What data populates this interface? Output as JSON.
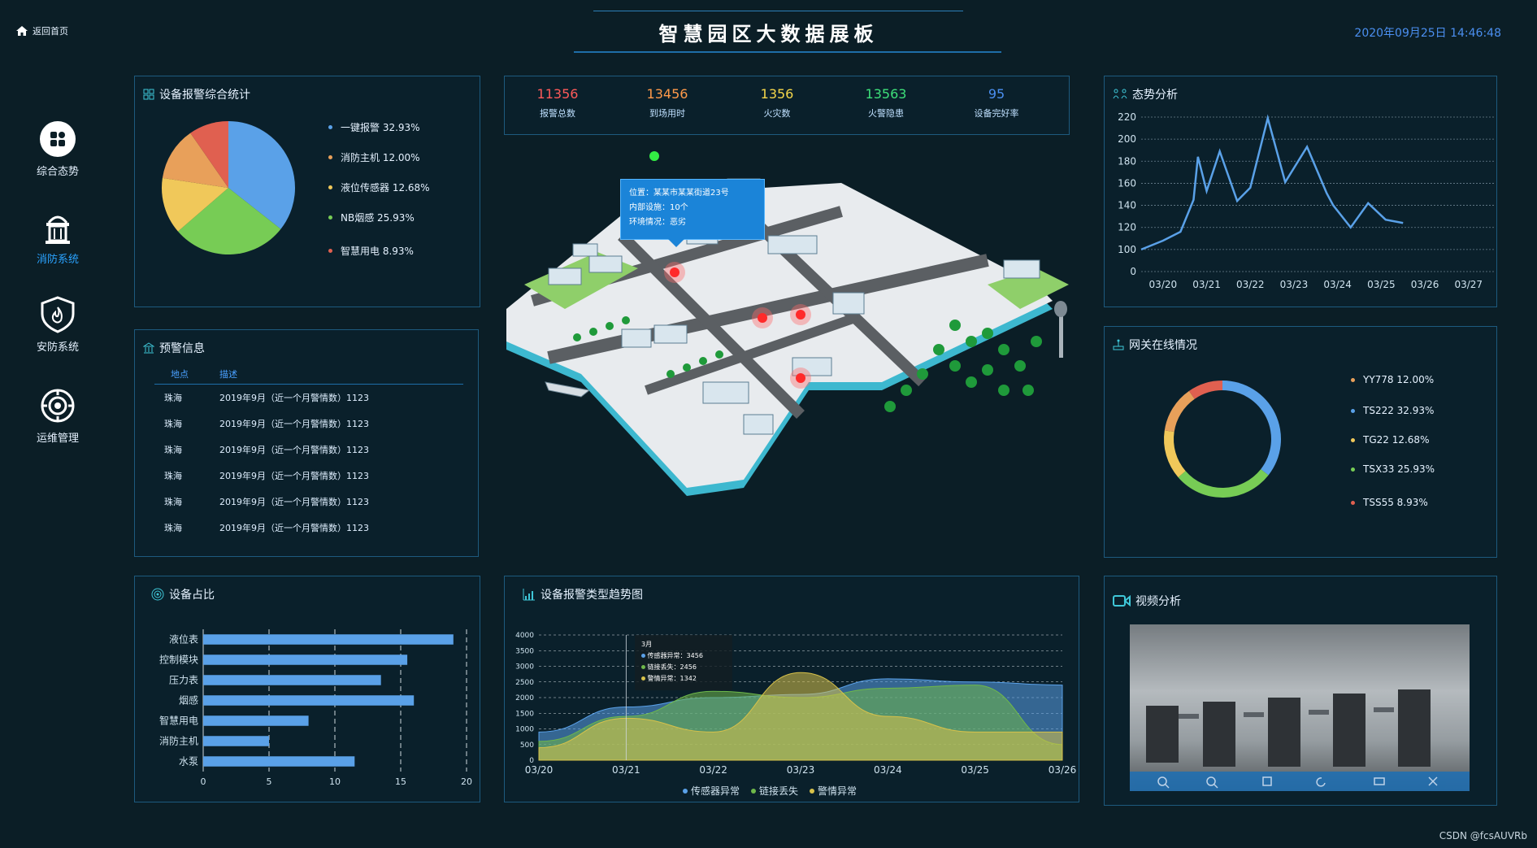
{
  "header": {
    "home_label": "返回首页",
    "title": "智慧园区大数据展板",
    "datetime": "2020年09月25日 14:46:48"
  },
  "nav": {
    "items": [
      {
        "label": "综合态势",
        "icon": "dashboard-icon"
      },
      {
        "label": "消防系统",
        "icon": "fire-hydrant-icon",
        "active": true
      },
      {
        "label": "安防系统",
        "icon": "shield-icon"
      },
      {
        "label": "运维管理",
        "icon": "gear-icon"
      }
    ]
  },
  "alarm_stats": {
    "title": "设备报警综合统计",
    "slices": [
      {
        "label": "一键报警 32.93%",
        "value": 32.93,
        "color": "#5aa1e8"
      },
      {
        "label": "消防主机 12.00%",
        "value": 12.0,
        "color": "#e8a05a"
      },
      {
        "label": "液位传感器 12.68%",
        "value": 12.68,
        "color": "#f0c85a"
      },
      {
        "label": "NB烟感 25.93%",
        "value": 25.93,
        "color": "#77cc55"
      },
      {
        "label": "智慧用电 8.93%",
        "value": 8.93,
        "color": "#e06050"
      }
    ]
  },
  "top_stats": [
    {
      "value": "11356",
      "label": "报警总数",
      "color": "#ff5a5a"
    },
    {
      "value": "13456",
      "label": "到场用时",
      "color": "#ff9a4a"
    },
    {
      "value": "1356",
      "label": "火灾数",
      "color": "#f5d64a"
    },
    {
      "value": "13563",
      "label": "火警隐患",
      "color": "#3ee07a"
    },
    {
      "value": "95",
      "label": "设备完好率",
      "color": "#4b8ff0"
    }
  ],
  "map": {
    "tooltip": {
      "line1": "位置：某某市某某街道23号",
      "line2": "内部设施：10个",
      "line3": "环境情况：恶劣"
    }
  },
  "warning": {
    "title": "预警信息",
    "headers": [
      "地点",
      "描述"
    ],
    "rows": [
      {
        "place": "珠海",
        "desc": "2019年9月（近一个月警情数）1123"
      },
      {
        "place": "珠海",
        "desc": "2019年9月（近一个月警情数）1123"
      },
      {
        "place": "珠海",
        "desc": "2019年9月（近一个月警情数）1123"
      },
      {
        "place": "珠海",
        "desc": "2019年9月（近一个月警情数）1123"
      },
      {
        "place": "珠海",
        "desc": "2019年9月（近一个月警情数）1123"
      },
      {
        "place": "珠海",
        "desc": "2019年9月（近一个月警情数）1123"
      }
    ]
  },
  "trend": {
    "title": "态势分析"
  },
  "gateway": {
    "title": "网关在线情况",
    "slices": [
      {
        "label": "YY778  12.00%",
        "value": 12.0,
        "color": "#e8a05a"
      },
      {
        "label": "TS222  32.93%",
        "value": 32.93,
        "color": "#5aa1e8"
      },
      {
        "label": "TG22  12.68%",
        "value": 12.68,
        "color": "#f0c85a"
      },
      {
        "label": "TSX33  25.93%",
        "value": 25.93,
        "color": "#77cc55"
      },
      {
        "label": "TSS55  8.93%",
        "value": 8.93,
        "color": "#e06050"
      }
    ]
  },
  "device_share": {
    "title": "设备占比"
  },
  "alarm_trend": {
    "title": "设备报警类型趋势图",
    "tooltip": {
      "title": "3月",
      "r1": "传感器异常：3456",
      "r2": "链接丢失：2456",
      "r3": "警情异常：1342"
    }
  },
  "video": {
    "title": "视频分析"
  },
  "watermark": "CSDN @fcsAUVRb",
  "chart_data": [
    {
      "type": "pie",
      "title": "设备报警综合统计",
      "labels": [
        "一键报警",
        "消防主机",
        "液位传感器",
        "NB烟感",
        "智慧用电"
      ],
      "values": [
        32.93,
        12.0,
        12.68,
        25.93,
        8.93
      ]
    },
    {
      "type": "line",
      "title": "态势分析",
      "x_ticks": [
        "03/20",
        "03/21",
        "03/22",
        "03/23",
        "03/24",
        "03/25",
        "03/26",
        "03/27"
      ],
      "y_ticks": [
        0,
        100,
        120,
        140,
        160,
        180,
        200,
        220
      ],
      "x": [
        0,
        0.5,
        0.9,
        1.2,
        1.3,
        1.5,
        1.8,
        2.2,
        2.5,
        2.9,
        3.3,
        3.8,
        4.25,
        4.4,
        4.8,
        5.2,
        5.6,
        6.0
      ],
      "y": [
        100,
        108,
        116,
        145,
        184,
        153,
        189,
        144,
        156,
        219,
        161,
        193,
        151,
        140,
        120,
        142,
        127,
        124
      ],
      "grid": true
    },
    {
      "type": "pie",
      "title": "网关在线情况",
      "labels": [
        "YY778",
        "TS222",
        "TG22",
        "TSX33",
        "TSS55"
      ],
      "values": [
        12.0,
        32.93,
        12.68,
        25.93,
        8.93
      ]
    },
    {
      "type": "bar",
      "title": "设备占比",
      "orientation": "horizontal",
      "categories": [
        "液位表",
        "控制模块",
        "压力表",
        "烟感",
        "智慧用电",
        "消防主机",
        "水泵"
      ],
      "values": [
        19,
        15.5,
        13.5,
        16,
        8,
        5,
        11.5
      ],
      "x_ticks": [
        0,
        5,
        10,
        15,
        20
      ],
      "xlim": [
        0,
        20
      ]
    },
    {
      "type": "area",
      "title": "设备报警类型趋势图",
      "categories": [
        "03/20",
        "03/21",
        "03/22",
        "03/23",
        "03/24",
        "03/25",
        "03/26"
      ],
      "y_ticks": [
        0,
        500,
        1000,
        1500,
        2000,
        2500,
        3000,
        3500,
        4000
      ],
      "ylim": [
        0,
        4000
      ],
      "series": [
        {
          "name": "传感器异常",
          "color": "#5aa1e8",
          "values": [
            900,
            1700,
            2000,
            2100,
            2600,
            2500,
            2400
          ]
        },
        {
          "name": "链接丢失",
          "color": "#6fb84a",
          "values": [
            600,
            1400,
            2200,
            2000,
            2300,
            2400,
            500
          ]
        },
        {
          "name": "警情异常",
          "color": "#d8c24a",
          "values": [
            400,
            1342,
            900,
            2800,
            1400,
            900,
            900
          ]
        }
      ],
      "legend": "bottom"
    }
  ]
}
